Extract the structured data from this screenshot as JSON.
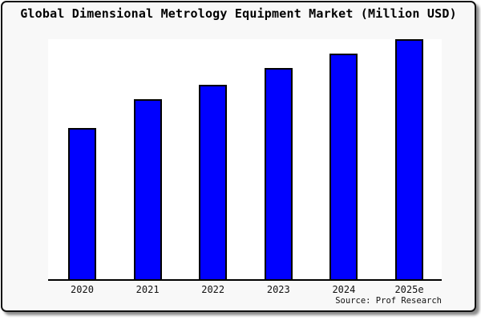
{
  "title": "Global Dimensional Metrology Equipment Market (Million USD)",
  "source_note": "Source: Prof Research",
  "colors": {
    "bar_fill": "#0000ff",
    "bar_border": "#000000",
    "axis": "#000000",
    "card_background": "#f8f8f8",
    "plot_background": "#ffffff",
    "frame_border": "#111111"
  },
  "chart_data": {
    "type": "bar",
    "title": "Global Dimensional Metrology Equipment Market (Million USD)",
    "categories": [
      "2020",
      "2021",
      "2022",
      "2023",
      "2024",
      "2025e"
    ],
    "values": [
      63,
      75,
      81,
      88,
      94,
      100
    ],
    "units": "relative bar height, % of tallest bar (chart shows no y-axis, gridlines or value labels)",
    "xlabel": "",
    "ylabel": "",
    "ylim": [
      0,
      100
    ],
    "grid": false,
    "legend": false,
    "source_note": "Source: Prof Research"
  }
}
